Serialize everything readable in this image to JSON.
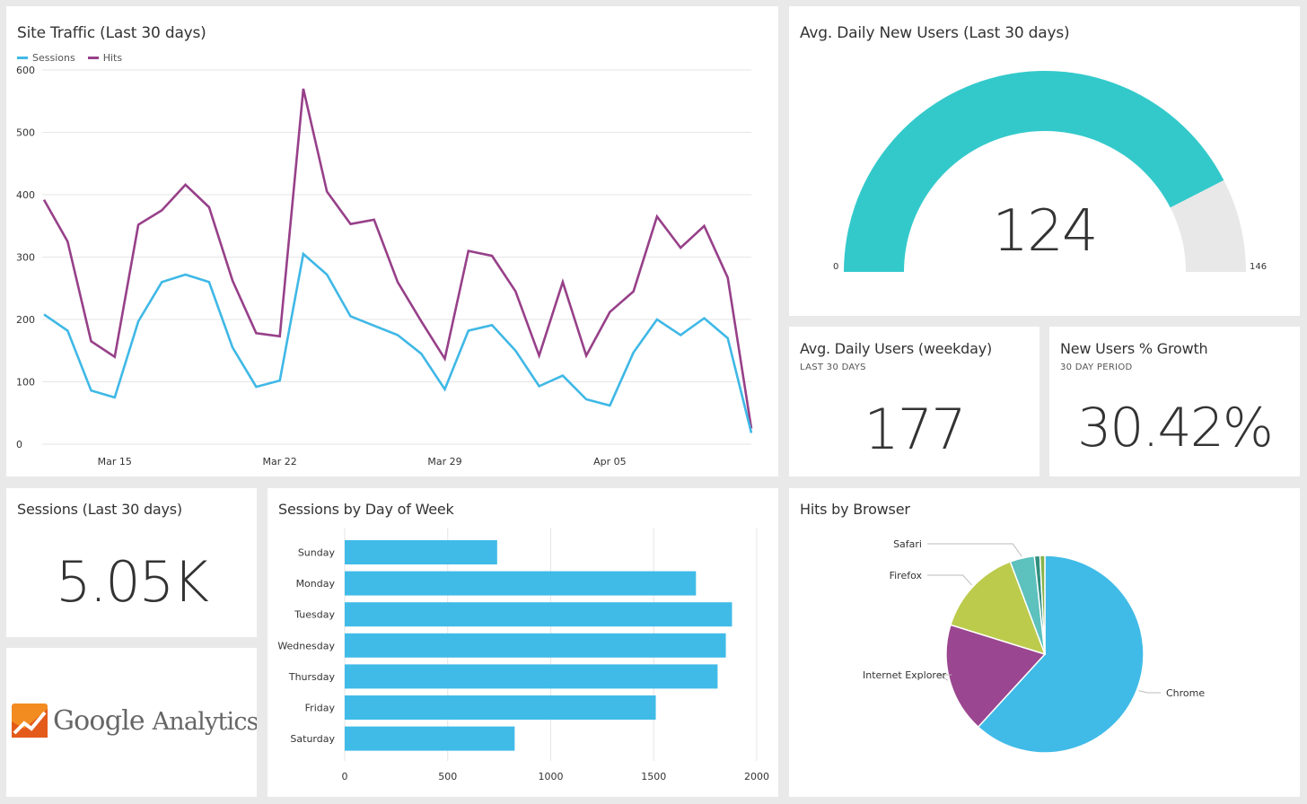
{
  "colors": {
    "sessions": "#3fb8e6",
    "hits": "#974089",
    "gauge_fill": "#33c9cb",
    "gauge_rest": "#e8e8e8",
    "bar": "#40bbe8"
  },
  "site_traffic": {
    "title": "Site Traffic (Last 30 days)",
    "legend": [
      "Sessions",
      "Hits"
    ],
    "chart_data": {
      "type": "line",
      "x": [
        "Mar 12",
        "Mar 13",
        "Mar 14",
        "Mar 15",
        "Mar 16",
        "Mar 17",
        "Mar 18",
        "Mar 19",
        "Mar 20",
        "Mar 21",
        "Mar 22",
        "Mar 23",
        "Mar 24",
        "Mar 25",
        "Mar 26",
        "Mar 27",
        "Mar 28",
        "Mar 29",
        "Mar 30",
        "Mar 31",
        "Apr 01",
        "Apr 02",
        "Apr 03",
        "Apr 04",
        "Apr 05",
        "Apr 06",
        "Apr 07",
        "Apr 08",
        "Apr 09",
        "Apr 10",
        "Apr 11"
      ],
      "x_ticks": [
        "Mar 15",
        "Mar 22",
        "Mar 29",
        "Apr 05"
      ],
      "series": [
        {
          "name": "Sessions",
          "values": [
            208,
            182,
            86,
            75,
            197,
            260,
            272,
            260,
            155,
            92,
            102,
            305,
            272,
            205,
            190,
            175,
            145,
            88,
            182,
            191,
            150,
            93,
            110,
            72,
            62,
            147,
            200,
            175,
            202,
            170,
            18
          ]
        },
        {
          "name": "Hits",
          "values": [
            392,
            325,
            165,
            140,
            352,
            375,
            416,
            380,
            262,
            178,
            173,
            570,
            405,
            353,
            360,
            260,
            197,
            137,
            310,
            302,
            245,
            142,
            260,
            142,
            212,
            245,
            365,
            315,
            350,
            267,
            25
          ]
        }
      ],
      "ylim": [
        0,
        600
      ],
      "y_ticks": [
        0,
        100,
        200,
        300,
        400,
        500,
        600
      ],
      "grid": true,
      "legend_position": "top-left"
    }
  },
  "avg_new_users": {
    "title": "Avg. Daily New Users (Last 30 days)",
    "value": "124",
    "min_label": "0",
    "max_label": "146",
    "chart_data": {
      "type": "gauge",
      "value": 124,
      "min": 0,
      "max": 146
    }
  },
  "avg_daily_users": {
    "title": "Avg. Daily Users (weekday)",
    "subtitle": "LAST 30 DAYS",
    "value": "177"
  },
  "new_users_growth": {
    "title": "New Users % Growth",
    "subtitle": "30 DAY PERIOD",
    "value": "30.42%"
  },
  "sessions_total": {
    "title": "Sessions (Last 30 days)",
    "value": "5.05K"
  },
  "ga_logo": {
    "text_google": "Google",
    "text_analytics": "Analytics",
    "icon": "analytics-logo-icon"
  },
  "sessions_by_day": {
    "title": "Sessions by Day of Week",
    "chart_data": {
      "type": "bar",
      "orientation": "horizontal",
      "categories": [
        "Sunday",
        "Monday",
        "Tuesday",
        "Wednesday",
        "Thursday",
        "Friday",
        "Saturday"
      ],
      "values": [
        740,
        1705,
        1880,
        1850,
        1810,
        1510,
        825
      ],
      "xlim": [
        0,
        2000
      ],
      "x_ticks": [
        0,
        500,
        1000,
        1500,
        2000
      ],
      "grid": true
    }
  },
  "hits_by_browser": {
    "title": "Hits by Browser",
    "chart_data": {
      "type": "pie",
      "slices": [
        {
          "label": "Chrome",
          "value": 61.8,
          "color": "#40bbe8"
        },
        {
          "label": "Internet Explorer",
          "value": 18.0,
          "color": "#9b4690"
        },
        {
          "label": "Firefox",
          "value": 14.5,
          "color": "#bccb4c"
        },
        {
          "label": "Safari",
          "value": 4.0,
          "color": "#5dc1bd"
        },
        {
          "label": "",
          "value": 0.9,
          "color": "#2f8f7f"
        },
        {
          "label": "",
          "value": 0.8,
          "color": "#86b34a"
        }
      ]
    }
  }
}
